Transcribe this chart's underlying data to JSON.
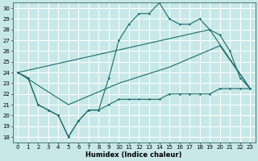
{
  "xlabel": "Humidex (Indice chaleur)",
  "bg_color": "#c8e8e8",
  "line_color": "#1a6b6b",
  "grid_color": "#ffffff",
  "xlim": [
    -0.5,
    23.5
  ],
  "ylim": [
    17.5,
    30.5
  ],
  "xticks": [
    0,
    1,
    2,
    3,
    4,
    5,
    6,
    7,
    8,
    9,
    10,
    11,
    12,
    13,
    14,
    15,
    16,
    17,
    18,
    19,
    20,
    21,
    22,
    23
  ],
  "yticks": [
    18,
    19,
    20,
    21,
    22,
    23,
    24,
    25,
    26,
    27,
    28,
    29,
    30
  ],
  "series_jagged": {
    "x": [
      0,
      1,
      2,
      3,
      4,
      5,
      6,
      7,
      8,
      9,
      10,
      11,
      12,
      13,
      14,
      15,
      16,
      17,
      18,
      19,
      20,
      21,
      22,
      23
    ],
    "y": [
      24.0,
      23.5,
      21.0,
      20.5,
      20.0,
      18.0,
      19.5,
      20.5,
      20.5,
      23.5,
      27.0,
      28.5,
      29.5,
      29.5,
      30.5,
      29.0,
      28.5,
      28.5,
      29.0,
      28.0,
      27.5,
      26.0,
      23.5,
      22.5
    ]
  },
  "series_upper_trend": {
    "x": [
      0,
      19,
      23
    ],
    "y": [
      24.0,
      28.0,
      22.5
    ]
  },
  "series_lower_trend": {
    "x": [
      0,
      5,
      10,
      15,
      20,
      23
    ],
    "y": [
      24.0,
      21.0,
      23.0,
      24.5,
      26.5,
      22.5
    ]
  },
  "series_bottom": {
    "x": [
      0,
      1,
      2,
      3,
      4,
      5,
      6,
      7,
      8,
      9,
      10,
      11,
      12,
      13,
      14,
      15,
      16,
      17,
      18,
      19,
      20,
      21,
      22,
      23
    ],
    "y": [
      24.0,
      23.5,
      21.0,
      20.5,
      20.0,
      18.0,
      19.5,
      20.5,
      20.5,
      21.0,
      21.5,
      21.5,
      21.5,
      21.5,
      21.5,
      22.0,
      22.0,
      22.0,
      22.0,
      22.0,
      22.5,
      22.5,
      22.5,
      22.5
    ]
  }
}
